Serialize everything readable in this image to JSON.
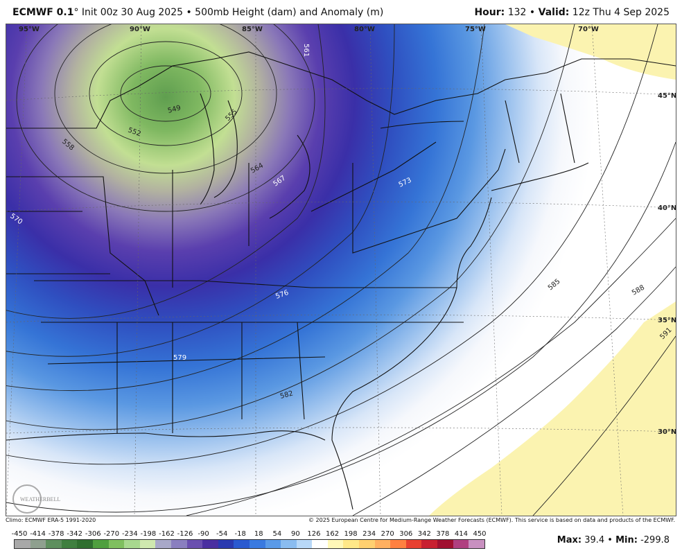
{
  "header": {
    "model": "ECMWF 0.1",
    "degree": "°",
    "init": " Init 00z 30 Aug 2025 • 500mb Height (dam) and Anomaly (m)",
    "hour_label": "Hour:",
    "hour_value": " 132 • ",
    "valid_label": "Valid:",
    "valid_value": " 12z Thu 4 Sep 2025"
  },
  "map": {
    "lon_labels": [
      "95°W",
      "90°W",
      "85°W",
      "80°W",
      "75°W",
      "70°W"
    ],
    "lat_labels": [
      "45°N",
      "40°N",
      "35°N",
      "30°N"
    ],
    "contour_labels": [
      "549",
      "552",
      "555",
      "558",
      "561",
      "564",
      "567",
      "570",
      "573",
      "576",
      "579",
      "582",
      "585",
      "588",
      "591"
    ],
    "logo_text": "WEATHERBELL",
    "colors": {
      "low_center": "#6aa84f",
      "strong_negative": "#2a2aa0",
      "moderate_negative": "#3a78d8",
      "weak_negative": "#a8c8ef",
      "near_zero": "#f4f6fb",
      "positive": "#fdf3a8"
    }
  },
  "credits": {
    "climo": "Climo: ECMWF ERA-5 1991-2020",
    "copyright": "© 2025 European Centre for Medium-Range Weather Forecasts (ECMWF). This service is based on data and products of the ECMWF."
  },
  "scale": {
    "labels": [
      "-450",
      "-414",
      "-378",
      "-342",
      "-306",
      "-270",
      "-234",
      "-198",
      "-162",
      "-126",
      "-90",
      "-54",
      "-18",
      "18",
      "54",
      "90",
      "126",
      "162",
      "198",
      "234",
      "270",
      "306",
      "342",
      "378",
      "414",
      "450"
    ],
    "colors": [
      "#a8a8a8",
      "#8fa08f",
      "#5e8f5e",
      "#3f7f3f",
      "#2f6f2f",
      "#4f9f3f",
      "#7fbf5f",
      "#a8d88f",
      "#cfe8af",
      "#a8a8c8",
      "#8a7fbf",
      "#6a4faf",
      "#4a2fa0",
      "#2a3ab0",
      "#2a5ad0",
      "#3a7ae0",
      "#5a9ae8",
      "#8abcf0",
      "#b8d8f8",
      "#ffffff",
      "#fff8b8",
      "#ffe888",
      "#ffd070",
      "#ffb060",
      "#ff8040",
      "#e84030",
      "#c82030",
      "#a01030",
      "#b04080",
      "#c890c0"
    ]
  },
  "stats": {
    "max_label": "Max:",
    "max_value": " 39.4 • ",
    "min_label": "Min:",
    "min_value": " -299.8"
  }
}
